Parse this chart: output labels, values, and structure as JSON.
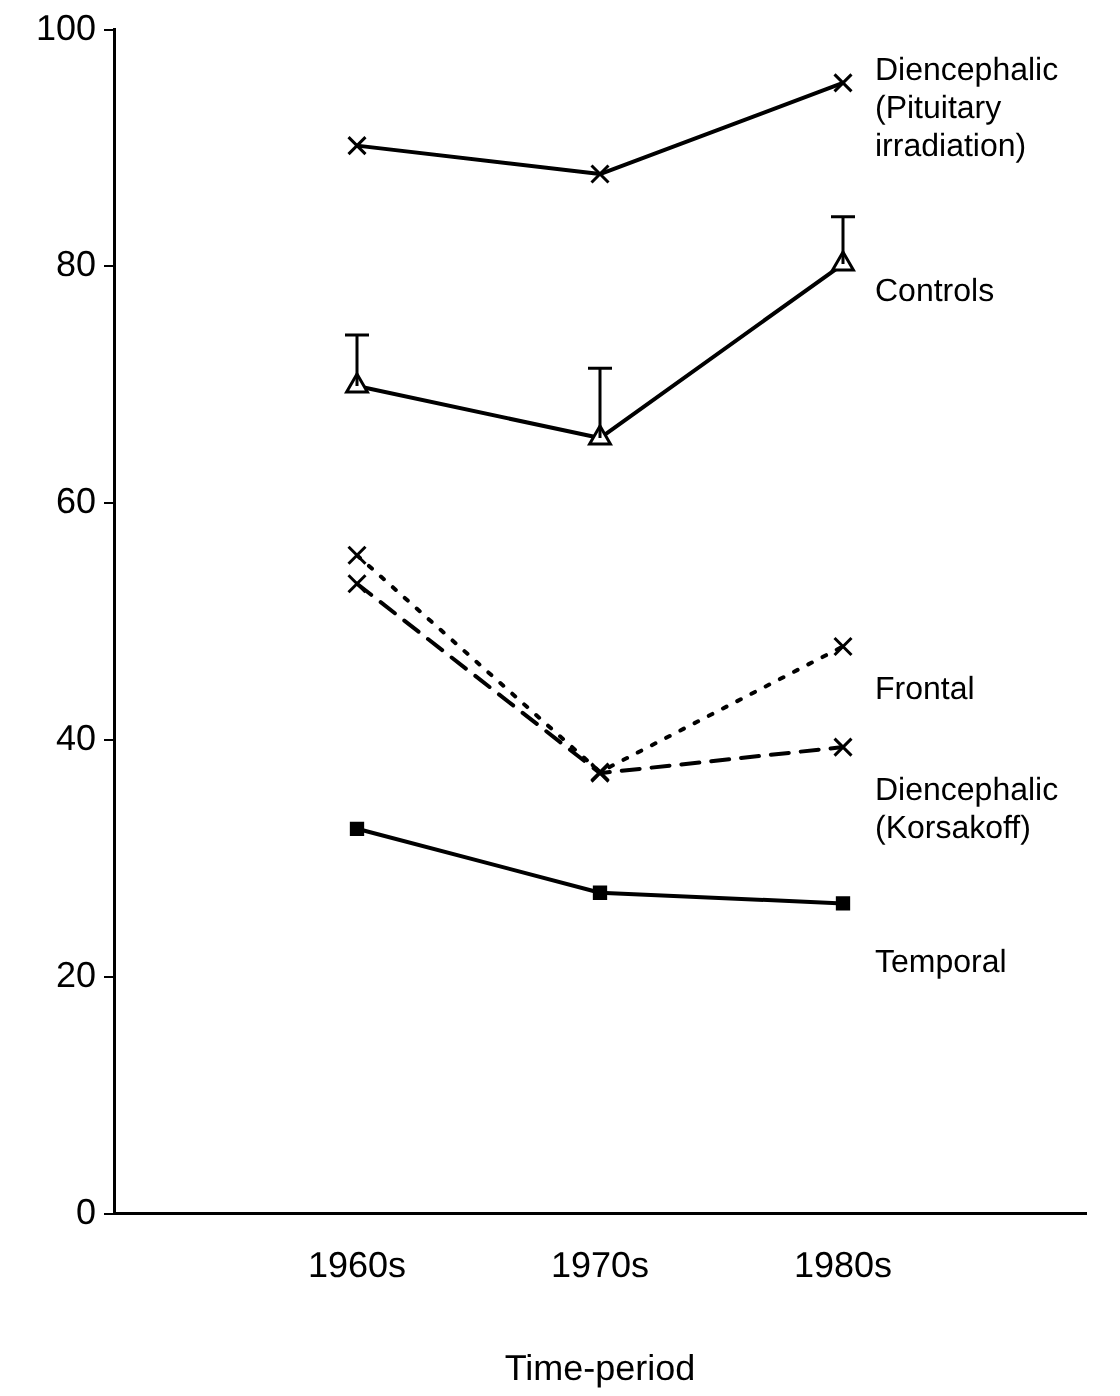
{
  "chart_data": {
    "type": "line",
    "xlabel": "Time-period",
    "categories": [
      "1960s",
      "1970s",
      "1980s"
    ],
    "ylim": [
      0,
      100
    ],
    "yticks": [
      0,
      20,
      40,
      60,
      80,
      100
    ],
    "grid": false,
    "legend": false,
    "series": [
      {
        "name": "Diencephalic (Pituitary irradiation)",
        "color": "#000000",
        "marker": "cross",
        "line_style": "solid",
        "values": [
          90.2,
          87.8,
          95.5
        ]
      },
      {
        "name": "Controls",
        "color": "#000000",
        "marker": "triangle",
        "line_style": "solid",
        "values": [
          69.9,
          65.5,
          80.2
        ],
        "errors": [
          [
            69.9,
            74.2
          ],
          [
            65.5,
            71.4
          ],
          [
            80.2,
            84.2
          ]
        ]
      },
      {
        "name": "Frontal",
        "color": "#000000",
        "marker": "cross",
        "line_style": "dotted",
        "values": [
          55.6,
          37.3,
          47.9
        ]
      },
      {
        "name": "Diencephalic (Korsakoff)",
        "color": "#000000",
        "marker": "cross",
        "line_style": "dashed",
        "values": [
          53.2,
          37.2,
          39.4
        ]
      },
      {
        "name": "Temporal",
        "color": "#000000",
        "marker": "square",
        "line_style": "solid",
        "values": [
          32.5,
          27.1,
          26.2
        ]
      }
    ]
  }
}
